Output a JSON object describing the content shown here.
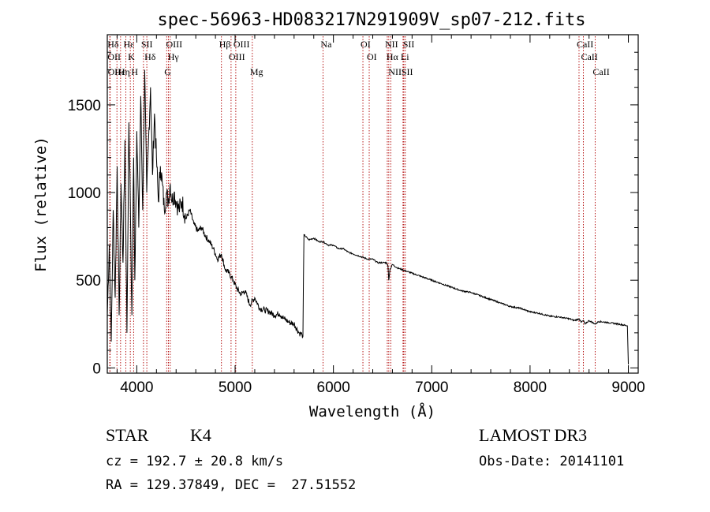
{
  "chart_data": {
    "type": "line",
    "title": "spec-56963-HD083217N291909V_sp07-212.fits",
    "xlabel": "Wavelength (Å)",
    "ylabel": "Flux (relative)",
    "xlim": [
      3700,
      9100
    ],
    "ylim": [
      -30,
      1900
    ],
    "xticks": [
      4000,
      5000,
      6000,
      7000,
      8000,
      9000
    ],
    "xtick_labels": [
      "4000",
      "5000",
      "6000",
      "7000",
      "8000",
      "9000"
    ],
    "yticks": [
      0,
      500,
      1000,
      1500
    ],
    "ytick_labels": [
      "0",
      "500",
      "1000",
      "1500"
    ],
    "series": [
      {
        "name": "flux",
        "x": [
          3700,
          3720,
          3740,
          3760,
          3780,
          3800,
          3820,
          3840,
          3860,
          3880,
          3900,
          3920,
          3935,
          3950,
          3968,
          3980,
          4000,
          4020,
          4040,
          4060,
          4080,
          4101,
          4120,
          4140,
          4160,
          4180,
          4200,
          4220,
          4240,
          4260,
          4280,
          4300,
          4320,
          4340,
          4360,
          4380,
          4400,
          4430,
          4460,
          4500,
          4540,
          4580,
          4620,
          4660,
          4700,
          4740,
          4780,
          4820,
          4860,
          4900,
          4940,
          4980,
          5020,
          5060,
          5100,
          5150,
          5200,
          5250,
          5300,
          5350,
          5400,
          5450,
          5500,
          5550,
          5600,
          5650,
          5680,
          5690,
          5700,
          5750,
          5800,
          5850,
          5893,
          5950,
          6000,
          6050,
          6100,
          6150,
          6200,
          6250,
          6300,
          6350,
          6400,
          6450,
          6500,
          6540,
          6555,
          6563,
          6575,
          6600,
          6650,
          6700,
          6750,
          6800,
          6900,
          7000,
          7100,
          7200,
          7300,
          7400,
          7500,
          7600,
          7700,
          7800,
          7900,
          8000,
          8100,
          8200,
          8300,
          8400,
          8450,
          8498,
          8520,
          8542,
          8560,
          8600,
          8662,
          8700,
          8800,
          8900,
          8990,
          9000
        ],
        "y": [
          300,
          700,
          150,
          900,
          400,
          1150,
          300,
          1050,
          600,
          1300,
          200,
          1400,
          900,
          300,
          1200,
          500,
          1350,
          800,
          1550,
          900,
          1700,
          1000,
          1300,
          1600,
          1100,
          1450,
          1200,
          950,
          1150,
          1050,
          900,
          1000,
          950,
          1050,
          950,
          1000,
          950,
          900,
          950,
          850,
          900,
          820,
          780,
          800,
          750,
          720,
          680,
          620,
          650,
          560,
          540,
          500,
          450,
          420,
          440,
          360,
          400,
          340,
          330,
          320,
          300,
          310,
          280,
          260,
          250,
          200,
          190,
          180,
          760,
          730,
          740,
          720,
          720,
          700,
          700,
          680,
          680,
          660,
          650,
          640,
          630,
          620,
          620,
          600,
          600,
          600,
          580,
          500,
          560,
          590,
          570,
          560,
          550,
          540,
          520,
          500,
          480,
          460,
          440,
          430,
          410,
          390,
          370,
          350,
          340,
          320,
          310,
          295,
          290,
          280,
          270,
          280,
          260,
          270,
          250,
          270,
          250,
          265,
          258,
          250,
          240,
          20
        ]
      }
    ],
    "lines": [
      {
        "label": "Hδ",
        "wl": 3726
      },
      {
        "label": "OII",
        "wl": 3727
      },
      {
        "label": "OII",
        "wl": 3729
      },
      {
        "label": "Hε",
        "wl": 3798
      },
      {
        "label": "Hη",
        "wl": 3835
      },
      {
        "label": "Hε",
        "wl": 3889
      },
      {
        "label": "K",
        "wl": 3934
      },
      {
        "label": "SII",
        "wl": 4068
      },
      {
        "label": "H",
        "wl": 3968
      },
      {
        "label": "Hδ",
        "wl": 4102
      },
      {
        "label": "OIII",
        "wl": 4322
      },
      {
        "label": "Hγ",
        "wl": 4340
      },
      {
        "label": "G",
        "wl": 4304
      },
      {
        "label": "Hβ",
        "wl": 4861
      },
      {
        "label": "OIII",
        "wl": 4959
      },
      {
        "label": "OIII",
        "wl": 5007
      },
      {
        "label": "Mg",
        "wl": 5175
      },
      {
        "label": "Na",
        "wl": 5894
      },
      {
        "label": "OI",
        "wl": 6300
      },
      {
        "label": "OI",
        "wl": 6364
      },
      {
        "label": "NII",
        "wl": 6548
      },
      {
        "label": "Hα",
        "wl": 6563
      },
      {
        "label": "NII",
        "wl": 6583
      },
      {
        "label": "Li",
        "wl": 6708
      },
      {
        "label": "SII",
        "wl": 6716
      },
      {
        "label": "SII",
        "wl": 6731
      },
      {
        "label": "CaII",
        "wl": 8498
      },
      {
        "label": "CaII",
        "wl": 8542
      },
      {
        "label": "CaII",
        "wl": 8662
      }
    ]
  },
  "info": {
    "object_class": "STAR",
    "subclass": "K4",
    "survey": "LAMOST DR3",
    "redshift": "cz = 192.7 ± 20.8 km/s",
    "obs_date": "Obs-Date: 20141101",
    "coords": "RA = 129.37849, DEC =  27.51552"
  },
  "colors": {
    "line": "#000000",
    "marker": "#b00000",
    "axes": "#000000",
    "background": "#ffffff"
  }
}
